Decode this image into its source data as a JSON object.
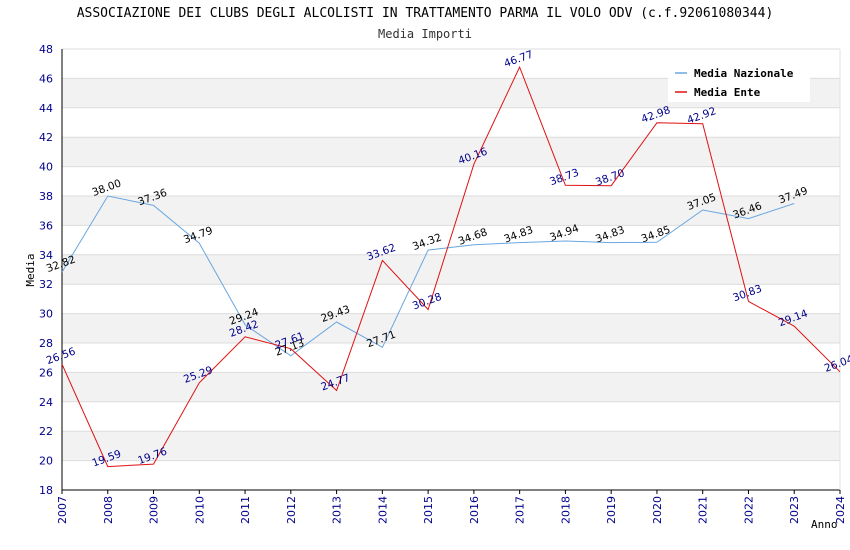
{
  "chart_data": {
    "type": "line",
    "title": "ASSOCIAZIONE DEI CLUBS DEGLI ALCOLISTI IN TRATTAMENTO PARMA IL VOLO ODV (c.f.92061080344)",
    "subtitle": "Media Importi",
    "xlabel": "Anno",
    "ylabel": "Media",
    "ylim": [
      18,
      48
    ],
    "yticks": [
      "18",
      "20",
      "22",
      "24",
      "26",
      "28",
      "30",
      "32",
      "34",
      "36",
      "38",
      "40",
      "42",
      "44",
      "46",
      "48"
    ],
    "x": [
      "2007",
      "2008",
      "2009",
      "2010",
      "2011",
      "2012",
      "2013",
      "2014",
      "2015",
      "2016",
      "2017",
      "2018",
      "2019",
      "2020",
      "2021",
      "2022",
      "2023",
      "2024"
    ],
    "series": [
      {
        "name": "Media Nazionale",
        "color": "#6aa6e0",
        "values": [
          32.82,
          38.0,
          37.36,
          34.79,
          29.24,
          27.13,
          29.43,
          27.71,
          34.32,
          34.68,
          34.83,
          34.94,
          34.83,
          34.85,
          37.05,
          36.46,
          37.49,
          null
        ],
        "labels": [
          "32.82",
          "38.00",
          "37.36",
          "34.79",
          "29.24",
          "27.13",
          "29.43",
          "27.71",
          "34.32",
          "34.68",
          "34.83",
          "34.94",
          "34.83",
          "34.85",
          "37.05",
          "36.46",
          "37.49",
          ""
        ]
      },
      {
        "name": "Media Ente",
        "color": "#e01010",
        "values": [
          26.56,
          19.59,
          19.76,
          25.29,
          28.42,
          27.61,
          24.77,
          33.62,
          30.28,
          40.16,
          46.77,
          38.73,
          38.7,
          42.98,
          42.92,
          30.83,
          29.14,
          26.04
        ],
        "labels": [
          "26.56",
          "19.59",
          "19.76",
          "25.29",
          "28.42",
          "27.61",
          "24.77",
          "33.62",
          "30.28",
          "40.16",
          "46.77",
          "38.73",
          "38.70",
          "42.98",
          "42.92",
          "30.83",
          "29.14",
          "26.04"
        ]
      }
    ],
    "grid": true,
    "legend_position": "top-right"
  }
}
